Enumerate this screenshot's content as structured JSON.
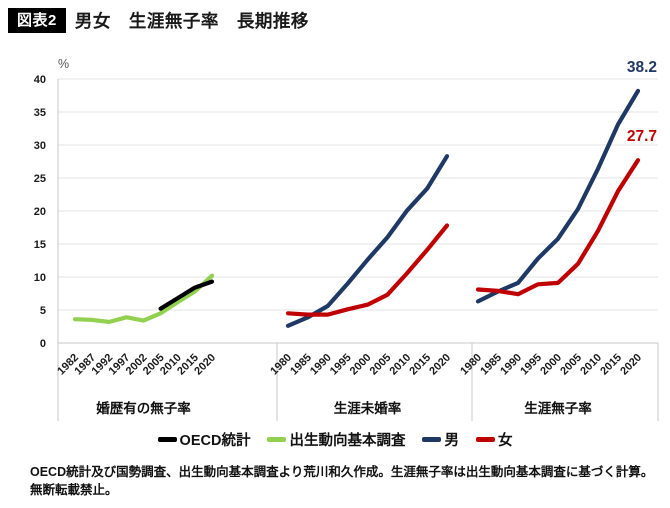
{
  "header": {
    "badge": "図表2",
    "title": "男女　生涯無子率　長期推移"
  },
  "chart_data": {
    "type": "line",
    "unit_label": "%",
    "ylim": [
      0,
      40
    ],
    "yticks": [
      0,
      5,
      10,
      15,
      20,
      25,
      30,
      35,
      40
    ],
    "grid": true,
    "legend_position": "bottom",
    "panels": [
      {
        "caption": "婚歴有の無子率",
        "categories": [
          "1982",
          "1987",
          "1992",
          "1997",
          "2002",
          "2005",
          "2010",
          "2015",
          "2020"
        ],
        "series": [
          {
            "name": "出生動向基本調査",
            "color": "#92D050",
            "values": [
              3.6,
              3.5,
              3.2,
              3.9,
              3.4,
              4.5,
              6.2,
              7.8,
              10.2
            ]
          },
          {
            "name": "OECD統計",
            "color": "#000000",
            "values": [
              null,
              null,
              null,
              null,
              null,
              5.2,
              6.8,
              8.4,
              9.3
            ]
          }
        ]
      },
      {
        "caption": "生涯未婚率",
        "categories": [
          "1980",
          "1985",
          "1990",
          "1995",
          "2000",
          "2005",
          "2010",
          "2015",
          "2020"
        ],
        "series": [
          {
            "name": "男",
            "color": "#1F3864",
            "values": [
              2.6,
              3.9,
              5.6,
              9.0,
              12.6,
              16.0,
              20.1,
              23.4,
              28.3
            ]
          },
          {
            "name": "女",
            "color": "#C00000",
            "values": [
              4.5,
              4.3,
              4.3,
              5.1,
              5.8,
              7.3,
              10.6,
              14.1,
              17.8
            ]
          }
        ]
      },
      {
        "caption": "生涯無子率",
        "categories": [
          "1980",
          "1985",
          "1990",
          "1995",
          "2000",
          "2005",
          "2010",
          "2015",
          "2020"
        ],
        "series": [
          {
            "name": "男",
            "color": "#1F3864",
            "values": [
              6.3,
              7.8,
              9.1,
              12.8,
              15.8,
              20.3,
              26.4,
              33.1,
              38.2
            ],
            "end_label": "38.2"
          },
          {
            "name": "女",
            "color": "#C00000",
            "values": [
              8.1,
              7.9,
              7.4,
              8.9,
              9.1,
              12.0,
              17.0,
              23.0,
              27.7
            ],
            "end_label": "27.7"
          }
        ]
      }
    ],
    "legend": [
      {
        "label": "OECD統計",
        "color": "#000000"
      },
      {
        "label": "出生動向基本調査",
        "color": "#92D050"
      },
      {
        "label": "男",
        "color": "#1F3864"
      },
      {
        "label": "女",
        "color": "#C00000"
      }
    ]
  },
  "footer": {
    "note": "OECD統計及び国勢調査、出生動向基本調査より荒川和久作成。生涯無子率は出生動向基本調査に基づく計算。無断転載禁止。"
  }
}
